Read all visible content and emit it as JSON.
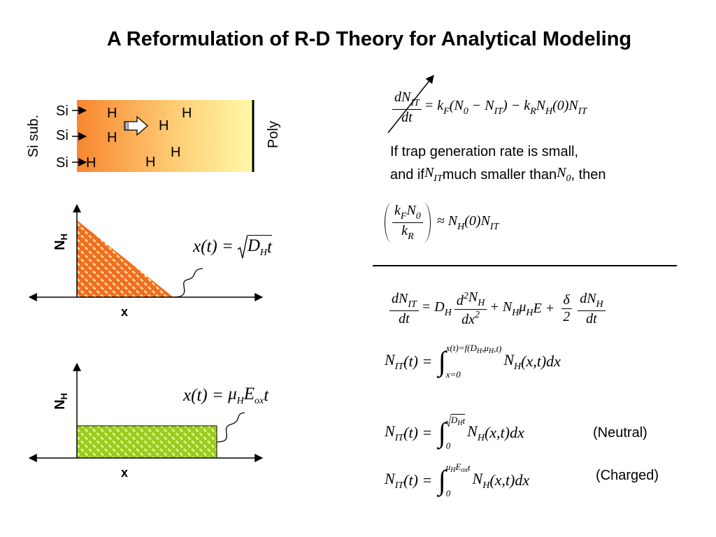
{
  "title": "A Reformulation of R-D Theory for Analytical Modeling",
  "device": {
    "left_label": "Si sub.",
    "right_label": "Poly",
    "si_labels": [
      "Si",
      "Si",
      "Si"
    ],
    "h_labels": [
      "H",
      "H",
      "H",
      "H",
      "H",
      "H",
      "H"
    ]
  },
  "plot1": {
    "y_label": {
      "t": "N",
      "sub": "H"
    },
    "x_label": "x",
    "formula": [
      "x(t) = ",
      {
        "root": [
          {
            "t": "D",
            "sub": "H"
          },
          "t"
        ]
      }
    ]
  },
  "plot2": {
    "y_label": {
      "t": "N",
      "sub": "H"
    },
    "x_label": "x",
    "formula": [
      "x(t) = ",
      {
        "t": "μ",
        "sub": "H"
      },
      {
        "t": "E",
        "sub": "ox"
      },
      "t"
    ]
  },
  "eq1": [
    {
      "num": [
        {
          "t": "dN",
          "sub": "IT"
        }
      ],
      "den": [
        "dt"
      ]
    },
    {
      "t": "= k",
      "sub": "F"
    },
    {
      "t": "(N",
      "sub": "0"
    },
    {
      "t": " − N",
      "sub": "IT"
    },
    {
      "t": ") − k",
      "sub": "R"
    },
    {
      "t": "N",
      "sub": "H"
    },
    {
      "t": "(0)N",
      "sub": "IT"
    }
  ],
  "note": {
    "line1": "If trap generation rate is small,",
    "line2": [
      "and if ",
      {
        "t": "N",
        "sub": "IT"
      },
      " much smaller than ",
      {
        "t": "N",
        "sub": "0"
      },
      ", then"
    ]
  },
  "eq2": [
    {
      "paren": [
        {
          "num": [
            {
              "t": "k",
              "sub": "F"
            },
            {
              "t": "N",
              "sub": "0"
            }
          ],
          "den": [
            {
              "t": "k",
              "sub": "R"
            }
          ]
        }
      ]
    },
    {
      "t": " ≈ N",
      "sub": "H"
    },
    {
      "t": "(0)N",
      "sub": "IT"
    }
  ],
  "eq3": [
    {
      "num": [
        {
          "t": "dN",
          "sub": "IT"
        }
      ],
      "den": [
        "dt"
      ]
    },
    {
      "t": "= D",
      "sub": "H"
    },
    {
      "num": [
        {
          "t": "d",
          "sup": "2"
        },
        {
          "t": "N",
          "sub": "H"
        }
      ],
      "den": [
        {
          "t": "dx",
          "sup": "2"
        }
      ]
    },
    {
      "t": "+ N",
      "sub": "H"
    },
    {
      "t": "μ",
      "sub": "H"
    },
    "E + ",
    {
      "num": [
        "δ"
      ],
      "den": [
        "2"
      ]
    },
    {
      "num": [
        {
          "t": "dN",
          "sub": "H"
        }
      ],
      "den": [
        "dt"
      ]
    }
  ],
  "eq4": [
    {
      "t": "N",
      "sub": "IT"
    },
    "(t) = ",
    {
      "sign": "∫",
      "upper": [
        {
          "t": "x(t)=f(D",
          "sub": "H"
        },
        {
          "t": ",μ",
          "sub": "H"
        },
        ",t)"
      ],
      "lower": [
        "x=0"
      ]
    },
    {
      "t": "N",
      "sub": "H"
    },
    "(x,t)dx"
  ],
  "eq5": {
    "row": [
      {
        "t": "N",
        "sub": "IT"
      },
      "(t) = ",
      {
        "sign": "∫",
        "upper": [
          {
            "root": [
              {
                "t": "D",
                "sub": "H"
              },
              "t"
            ]
          }
        ],
        "lower": [
          "0"
        ]
      },
      {
        "t": "N",
        "sub": "H"
      },
      "(x,t)dx"
    ],
    "label": "(Neutral)"
  },
  "eq6": {
    "row": [
      {
        "t": "N",
        "sub": "IT"
      },
      "(t) = ",
      {
        "sign": "∫",
        "upper": [
          {
            "t": "μ",
            "sub": "H"
          },
          {
            "t": "E",
            "sub": "ox"
          },
          "t"
        ],
        "lower": [
          "0"
        ]
      },
      {
        "t": "N",
        "sub": "H"
      },
      "(x,t)dx"
    ],
    "label": "(Charged)"
  }
}
